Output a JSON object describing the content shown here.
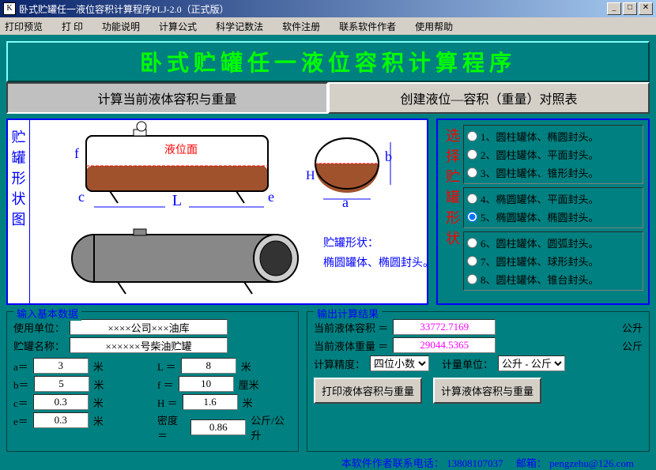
{
  "window": {
    "title": "卧式贮罐任一液位容积计算程序PLJ-2.0（正式版）",
    "icon": "K"
  },
  "menu": [
    "打印预览",
    "打 印",
    "功能说明",
    "计算公式",
    "科学记数法",
    "软件注册",
    "联系软件作者",
    "使用帮助"
  ],
  "mainTitle": "卧式贮罐任一液位容积计算程序",
  "tabs": {
    "left": "计算当前液体容积与重量",
    "right": "创建液位—容积（重量）对照表"
  },
  "diagramLabel": "贮罐形状图",
  "diagramText": {
    "liquidSurface": "液位面",
    "shapeDesc1": "贮罐形状：",
    "shapeDesc2": "椭圆罐体、椭圆封头。",
    "L": "L",
    "f": "f",
    "c": "c",
    "e": "e",
    "H": "H",
    "a": "a",
    "b": "b"
  },
  "shapeSelect": {
    "label": "选择贮罐形状",
    "groups": [
      [
        "1、圆柱罐体、椭圆封头。",
        "2、圆柱罐体、平面封头。",
        "3、圆柱罐体、锥形封头。"
      ],
      [
        "4、椭圆罐体、平面封头。",
        "5、椭圆罐体、椭圆封头。"
      ],
      [
        "6、圆柱罐体、圆弧封头。",
        "7、圆柱罐体、球形封头。",
        "8、圆柱罐体、锥台封头。"
      ]
    ],
    "selected": "5、椭圆罐体、椭圆封头。"
  },
  "input": {
    "legend": "输入基本数据",
    "unit": {
      "label": "使用单位：",
      "value": "××××公司×××油库"
    },
    "tankName": {
      "label": "贮罐名称：",
      "value": "××××××号柴油贮罐"
    },
    "a": {
      "label": "a＝",
      "value": "3",
      "unit": "米"
    },
    "b": {
      "label": "b＝",
      "value": "5",
      "unit": "米"
    },
    "c": {
      "label": "c＝",
      "value": "0.3",
      "unit": "米"
    },
    "e": {
      "label": "e＝",
      "value": "0.3",
      "unit": "米"
    },
    "L": {
      "label": "L ＝",
      "value": "8",
      "unit": "米"
    },
    "f": {
      "label": "f ＝",
      "value": "10",
      "unit": "厘米"
    },
    "H": {
      "label": "H ＝",
      "value": "1.6",
      "unit": "米"
    },
    "density": {
      "label": "密度＝",
      "value": "0.86",
      "unit": "公斤/公升"
    }
  },
  "output": {
    "legend": "输出计算结果",
    "volume": {
      "label": "当前液体容积 ＝",
      "value": "33772.7169",
      "unit": "公升"
    },
    "weight": {
      "label": "当前液体重量 ＝",
      "value": "29044.5365",
      "unit": "公斤"
    },
    "precision": {
      "label": "计算精度：",
      "value": "四位小数"
    },
    "measureUnit": {
      "label": "计量单位：",
      "value": "公升 - 公斤"
    },
    "printBtn": "打印液体容积与重量",
    "calcBtn": "计算液体容积与重量"
  },
  "footer": {
    "text": "本软件作者联系电话：",
    "phone": "13808107037",
    "mailLabel": "邮箱：",
    "mail": "pengzehu@126.com"
  },
  "colors": {
    "bg": "#008080",
    "accent": "#0000ff",
    "red": "#ff0000",
    "magenta": "#ff00ff",
    "green": "#00ff00",
    "tank": "#a0522d"
  }
}
